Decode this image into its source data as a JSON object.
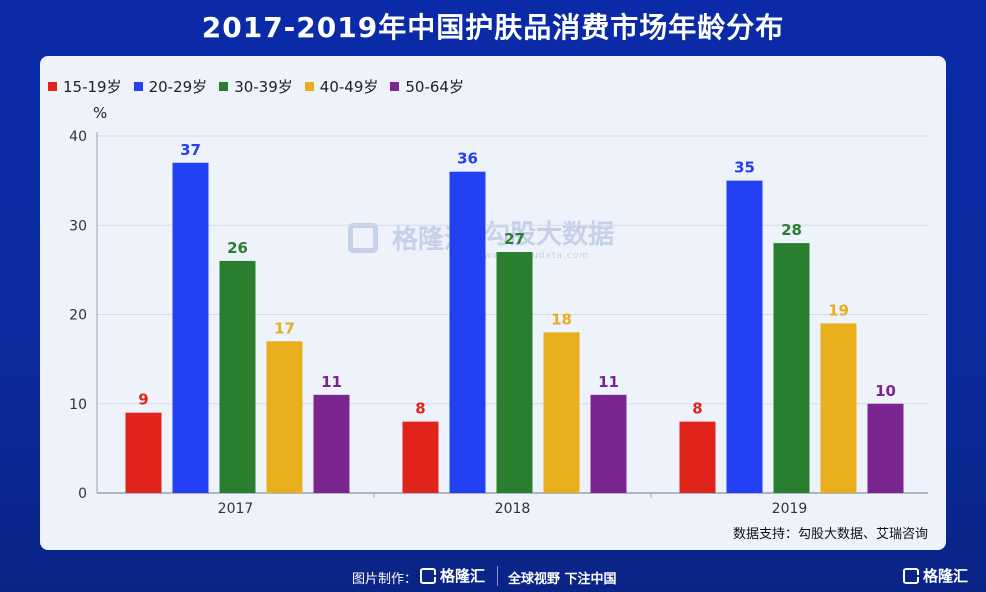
{
  "title": "2017-2019年中国护肤品消费市场年龄分布",
  "unit_label": "%",
  "source_text": "数据支持：勾股大数据、艾瑞咨询",
  "watermark": {
    "brand": "格隆汇",
    "brand_url": "www.gelonghui.com",
    "partner": "勾股大数据",
    "partner_url": "www.gogudata.com"
  },
  "footer": {
    "credit_label": "图片制作：",
    "logo_text": "格隆汇",
    "slogan": "全球视野 下注中国",
    "corner_logo": "格隆汇"
  },
  "chart_data": {
    "type": "bar",
    "title": "2017-2019年中国护肤品消费市场年龄分布",
    "xlabel": "",
    "ylabel": "%",
    "categories": [
      "2017",
      "2018",
      "2019"
    ],
    "ylim": [
      0,
      40
    ],
    "yticks": [
      0,
      10,
      20,
      30,
      40
    ],
    "grid": true,
    "legend_position": "top-left",
    "series": [
      {
        "name": "15-19岁",
        "color": "#e0231b",
        "values": [
          9,
          8,
          8
        ]
      },
      {
        "name": "20-29岁",
        "color": "#2340f2",
        "values": [
          37,
          36,
          35
        ]
      },
      {
        "name": "30-39岁",
        "color": "#2a7f2e",
        "values": [
          26,
          27,
          28
        ]
      },
      {
        "name": "40-49岁",
        "color": "#e8ae1c",
        "values": [
          17,
          18,
          19
        ]
      },
      {
        "name": "50-64岁",
        "color": "#7b2590",
        "values": [
          11,
          11,
          10
        ]
      }
    ]
  }
}
